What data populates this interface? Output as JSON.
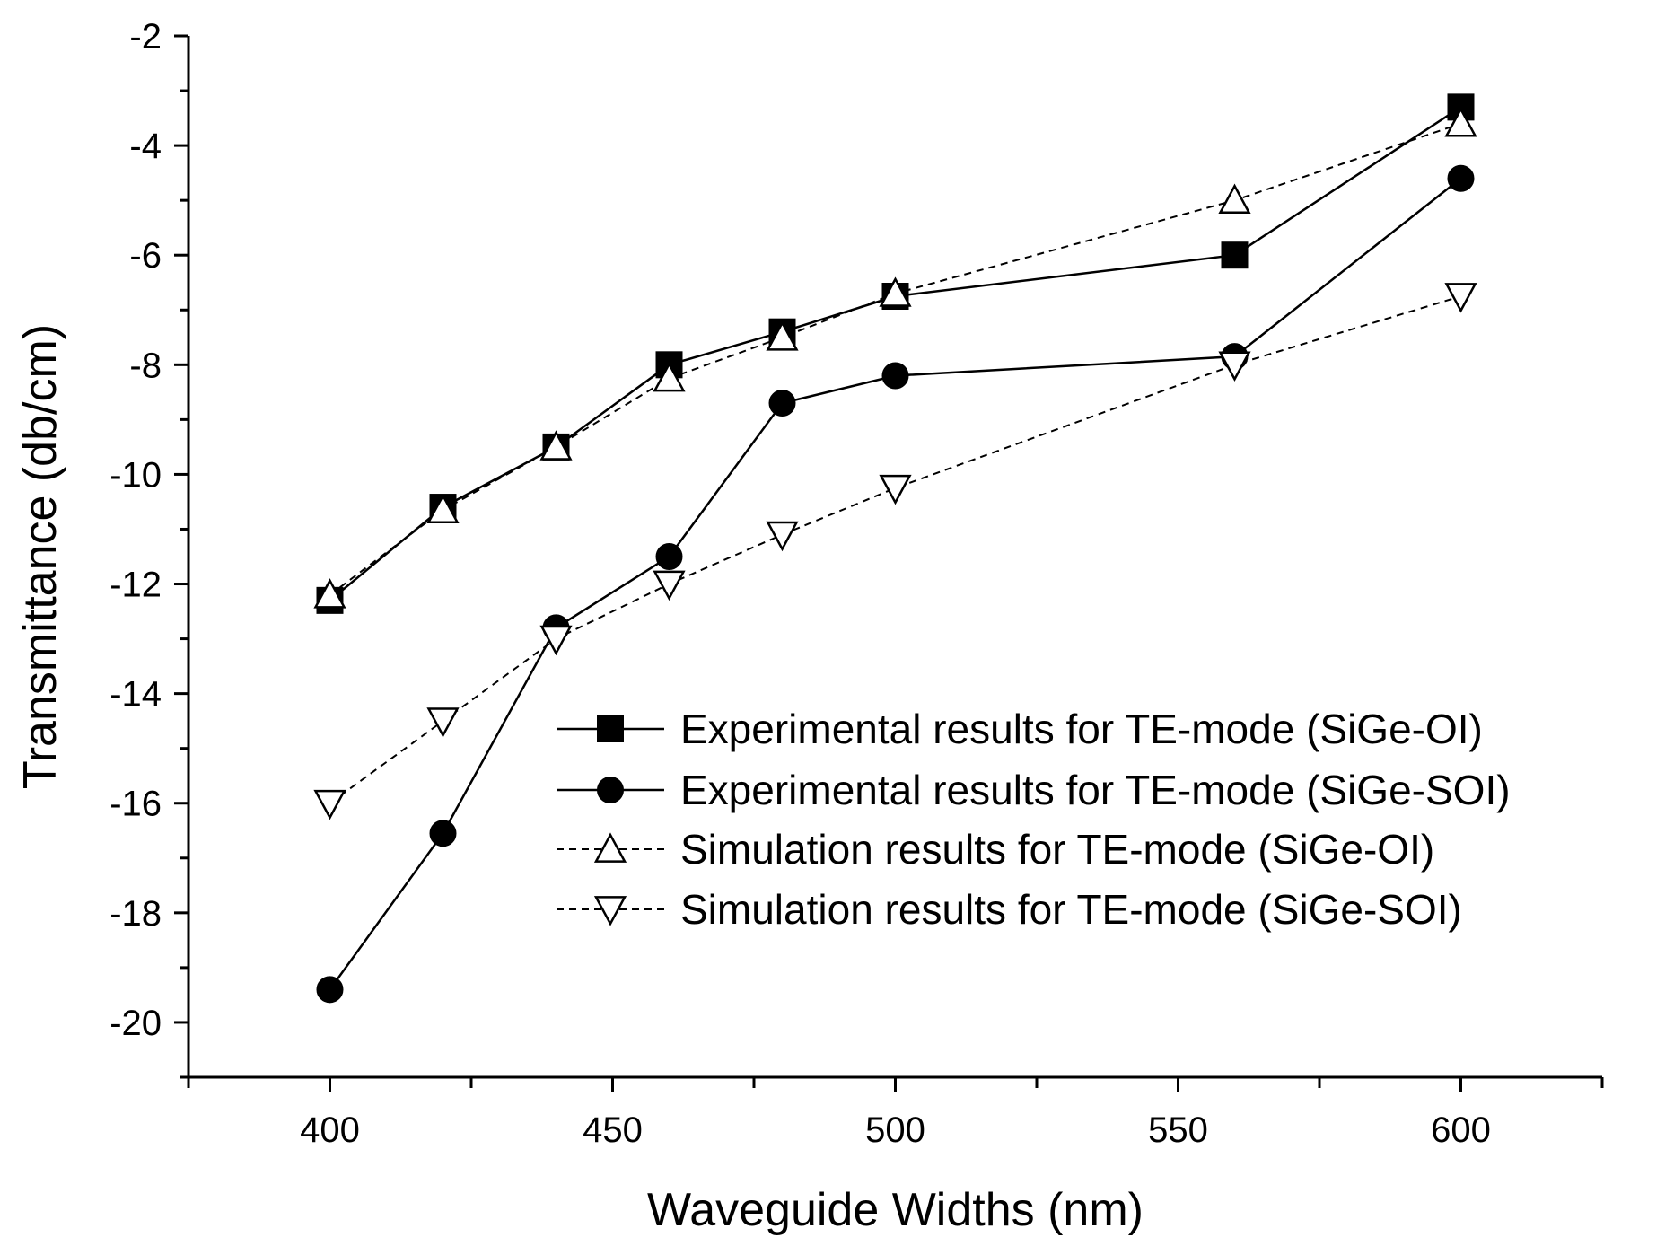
{
  "chart_data": {
    "type": "line",
    "title": "",
    "xlabel": "Waveguide Widths (nm)",
    "ylabel": "Transmittance  (db/cm)",
    "xlim": [
      375,
      625
    ],
    "ylim": [
      -21,
      -2
    ],
    "x_ticks": [
      400,
      450,
      500,
      550,
      600
    ],
    "x_minor_ticks": [
      375,
      425,
      475,
      525,
      575,
      625
    ],
    "y_ticks": [
      -2,
      -4,
      -6,
      -8,
      -10,
      -12,
      -14,
      -16,
      -18,
      -20
    ],
    "y_minor_step": 1,
    "grid": false,
    "legend_position": "lower-right",
    "series": [
      {
        "name": "Experimental results for TE-mode (SiGe-OI)",
        "marker": "square-filled",
        "line": "solid",
        "x": [
          400,
          420,
          440,
          460,
          480,
          500,
          560,
          600
        ],
        "y": [
          -12.3,
          -10.6,
          -9.5,
          -8.0,
          -7.4,
          -6.75,
          -6.0,
          -3.3
        ]
      },
      {
        "name": "Experimental results for TE-mode (SiGe-SOI)",
        "marker": "circle-filled",
        "line": "solid",
        "x": [
          400,
          420,
          440,
          460,
          480,
          500,
          560,
          600
        ],
        "y": [
          -19.4,
          -16.55,
          -12.8,
          -11.5,
          -8.7,
          -8.2,
          -7.85,
          -4.6
        ]
      },
      {
        "name": "Simulation results for TE-mode (SiGe-OI)",
        "marker": "triangle-up-open",
        "line": "dashed",
        "x": [
          400,
          420,
          440,
          460,
          480,
          500,
          560,
          600
        ],
        "y": [
          -12.2,
          -10.65,
          -9.5,
          -8.25,
          -7.5,
          -6.7,
          -5.0,
          -3.6
        ]
      },
      {
        "name": "Simulation results for TE-mode (SiGe-SOI)",
        "marker": "triangle-down-open",
        "line": "dashed",
        "x": [
          400,
          420,
          440,
          460,
          480,
          500,
          560,
          600
        ],
        "y": [
          -16.0,
          -14.5,
          -13.0,
          -12.0,
          -11.1,
          -10.25,
          -8.0,
          -6.75
        ]
      }
    ]
  }
}
